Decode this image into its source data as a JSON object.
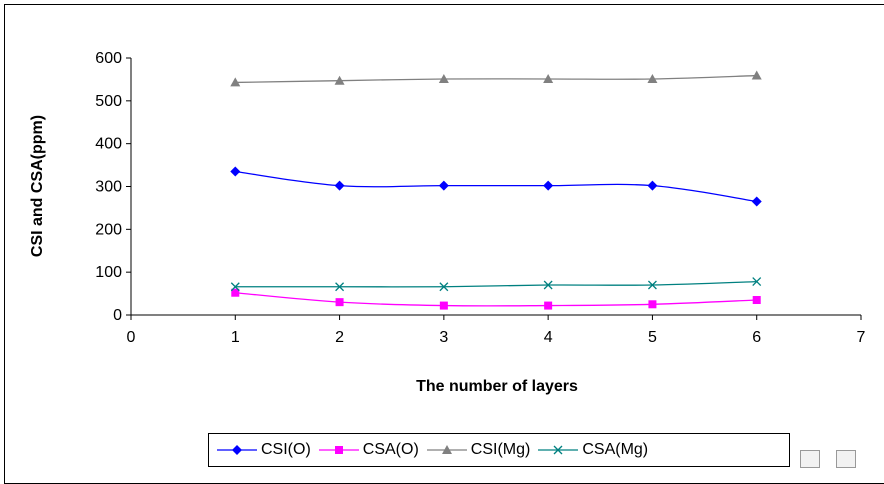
{
  "chart_data": {
    "type": "line",
    "title": "",
    "xlabel": "The number of layers",
    "ylabel": "CSI and CSA(ppm)",
    "xlim": [
      0,
      7
    ],
    "ylim": [
      0,
      600
    ],
    "xticks": [
      "0",
      "1",
      "2",
      "3",
      "4",
      "5",
      "6",
      "7"
    ],
    "yticks": [
      "0",
      "100",
      "200",
      "300",
      "400",
      "500",
      "600"
    ],
    "grid": false,
    "legend_position": "bottom",
    "x": [
      1,
      2,
      3,
      4,
      5,
      6
    ],
    "series": [
      {
        "name": "CSI(O)",
        "color": "#0000ff",
        "marker": "diamond",
        "values": [
          335,
          302,
          302,
          302,
          302,
          265
        ]
      },
      {
        "name": "CSA(O)",
        "color": "#ff00ff",
        "marker": "square",
        "values": [
          52,
          30,
          22,
          22,
          25,
          35
        ]
      },
      {
        "name": "CSI(Mg)",
        "color": "#808080",
        "marker": "triangle",
        "values": [
          543,
          547,
          551,
          551,
          551,
          559
        ]
      },
      {
        "name": "CSA(Mg)",
        "color": "#008080",
        "marker": "x",
        "values": [
          66,
          66,
          66,
          70,
          70,
          78
        ]
      }
    ]
  }
}
